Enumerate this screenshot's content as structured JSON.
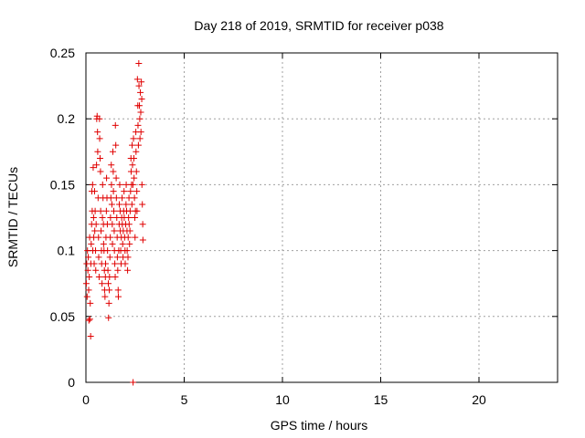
{
  "chart_data": {
    "type": "scatter",
    "title": "Day 218 of 2019, SRMTID for receiver p038",
    "xlabel": "GPS time / hours",
    "ylabel": "SRMTID / TECUs",
    "xlim": [
      0,
      24
    ],
    "ylim": [
      0,
      0.25
    ],
    "xticks": [
      0,
      5,
      10,
      15,
      20
    ],
    "yticks": [
      0,
      0.05,
      0.1,
      0.15,
      0.2,
      0.25
    ],
    "grid": true,
    "marker": "plus",
    "color": "#e00000",
    "points": [
      [
        0.02,
        0.075
      ],
      [
        0.04,
        0.09
      ],
      [
        0.06,
        0.065
      ],
      [
        0.08,
        0.1
      ],
      [
        0.1,
        0.085
      ],
      [
        0.12,
        0.095
      ],
      [
        0.14,
        0.07
      ],
      [
        0.15,
        0.047
      ],
      [
        0.17,
        0.08
      ],
      [
        0.19,
        0.11
      ],
      [
        0.2,
        0.048
      ],
      [
        0.22,
        0.06
      ],
      [
        0.24,
        0.035
      ],
      [
        0.25,
        0.09
      ],
      [
        0.27,
        0.105
      ],
      [
        0.29,
        0.12
      ],
      [
        0.3,
        0.145
      ],
      [
        0.32,
        0.13
      ],
      [
        0.34,
        0.15
      ],
      [
        0.35,
        0.1
      ],
      [
        0.37,
        0.163
      ],
      [
        0.39,
        0.125
      ],
      [
        0.4,
        0.11
      ],
      [
        0.42,
        0.09
      ],
      [
        0.44,
        0.145
      ],
      [
        0.45,
        0.115
      ],
      [
        0.47,
        0.13
      ],
      [
        0.49,
        0.1
      ],
      [
        0.5,
        0.085
      ],
      [
        0.52,
        0.12
      ],
      [
        0.54,
        0.165
      ],
      [
        0.55,
        0.2
      ],
      [
        0.57,
        0.202
      ],
      [
        0.59,
        0.19
      ],
      [
        0.6,
        0.175
      ],
      [
        0.62,
        0.14
      ],
      [
        0.64,
        0.11
      ],
      [
        0.65,
        0.095
      ],
      [
        0.67,
        0.08
      ],
      [
        0.69,
        0.2
      ],
      [
        0.7,
        0.185
      ],
      [
        0.72,
        0.17
      ],
      [
        0.74,
        0.16
      ],
      [
        0.75,
        0.13
      ],
      [
        0.77,
        0.115
      ],
      [
        0.79,
        0.1
      ],
      [
        0.8,
        0.09
      ],
      [
        0.82,
        0.075
      ],
      [
        0.84,
        0.125
      ],
      [
        0.85,
        0.15
      ],
      [
        0.87,
        0.14
      ],
      [
        0.89,
        0.12
      ],
      [
        0.9,
        0.105
      ],
      [
        0.92,
        0.1
      ],
      [
        0.94,
        0.085
      ],
      [
        0.95,
        0.07
      ],
      [
        0.97,
        0.065
      ],
      [
        0.99,
        0.08
      ],
      [
        1.0,
        0.09
      ],
      [
        1.02,
        0.11
      ],
      [
        1.04,
        0.13
      ],
      [
        1.05,
        0.155
      ],
      [
        1.07,
        0.14
      ],
      [
        1.09,
        0.12
      ],
      [
        1.1,
        0.1
      ],
      [
        1.12,
        0.085
      ],
      [
        1.14,
        0.075
      ],
      [
        1.15,
        0.049
      ],
      [
        1.17,
        0.06
      ],
      [
        1.19,
        0.07
      ],
      [
        1.2,
        0.08
      ],
      [
        1.22,
        0.095
      ],
      [
        1.24,
        0.11
      ],
      [
        1.25,
        0.125
      ],
      [
        1.27,
        0.14
      ],
      [
        1.29,
        0.165
      ],
      [
        1.3,
        0.15
      ],
      [
        1.32,
        0.135
      ],
      [
        1.34,
        0.12
      ],
      [
        1.35,
        0.105
      ],
      [
        1.37,
        0.175
      ],
      [
        1.39,
        0.16
      ],
      [
        1.4,
        0.145
      ],
      [
        1.42,
        0.13
      ],
      [
        1.44,
        0.115
      ],
      [
        1.45,
        0.1
      ],
      [
        1.47,
        0.09
      ],
      [
        1.49,
        0.08
      ],
      [
        1.5,
        0.195
      ],
      [
        1.52,
        0.18
      ],
      [
        1.54,
        0.155
      ],
      [
        1.55,
        0.14
      ],
      [
        1.57,
        0.125
      ],
      [
        1.59,
        0.11
      ],
      [
        1.6,
        0.095
      ],
      [
        1.62,
        0.085
      ],
      [
        1.64,
        0.07
      ],
      [
        1.65,
        0.065
      ],
      [
        1.67,
        0.1
      ],
      [
        1.69,
        0.12
      ],
      [
        1.7,
        0.135
      ],
      [
        1.72,
        0.15
      ],
      [
        1.74,
        0.13
      ],
      [
        1.75,
        0.115
      ],
      [
        1.77,
        0.1
      ],
      [
        1.79,
        0.09
      ],
      [
        1.8,
        0.11
      ],
      [
        1.82,
        0.125
      ],
      [
        1.84,
        0.14
      ],
      [
        1.85,
        0.12
      ],
      [
        1.87,
        0.105
      ],
      [
        1.89,
        0.095
      ],
      [
        1.9,
        0.115
      ],
      [
        1.92,
        0.13
      ],
      [
        1.94,
        0.145
      ],
      [
        1.95,
        0.125
      ],
      [
        1.97,
        0.11
      ],
      [
        1.99,
        0.1
      ],
      [
        2.0,
        0.09
      ],
      [
        2.02,
        0.12
      ],
      [
        2.04,
        0.135
      ],
      [
        2.05,
        0.15
      ],
      [
        2.07,
        0.13
      ],
      [
        2.09,
        0.115
      ],
      [
        2.1,
        0.1
      ],
      [
        2.12,
        0.085
      ],
      [
        2.14,
        0.095
      ],
      [
        2.15,
        0.11
      ],
      [
        2.17,
        0.125
      ],
      [
        2.19,
        0.14
      ],
      [
        2.2,
        0.12
      ],
      [
        2.22,
        0.105
      ],
      [
        2.24,
        0.115
      ],
      [
        2.25,
        0.13
      ],
      [
        2.27,
        0.145
      ],
      [
        2.29,
        0.17
      ],
      [
        2.3,
        0.16
      ],
      [
        2.32,
        0.15
      ],
      [
        2.34,
        0.135
      ],
      [
        2.35,
        0.18
      ],
      [
        2.37,
        0.165
      ],
      [
        2.39,
        0.15
      ],
      [
        2.4,
        0.0
      ],
      [
        2.42,
        0.185
      ],
      [
        2.44,
        0.17
      ],
      [
        2.45,
        0.155
      ],
      [
        2.47,
        0.14
      ],
      [
        2.49,
        0.125
      ],
      [
        2.5,
        0.11
      ],
      [
        2.52,
        0.13
      ],
      [
        2.54,
        0.19
      ],
      [
        2.55,
        0.175
      ],
      [
        2.57,
        0.16
      ],
      [
        2.59,
        0.145
      ],
      [
        2.6,
        0.13
      ],
      [
        2.62,
        0.23
      ],
      [
        2.64,
        0.21
      ],
      [
        2.65,
        0.195
      ],
      [
        2.67,
        0.18
      ],
      [
        2.69,
        0.242
      ],
      [
        2.7,
        0.225
      ],
      [
        2.72,
        0.21
      ],
      [
        2.74,
        0.2
      ],
      [
        2.75,
        0.185
      ],
      [
        2.77,
        0.22
      ],
      [
        2.79,
        0.205
      ],
      [
        2.8,
        0.19
      ],
      [
        2.82,
        0.228
      ],
      [
        2.84,
        0.215
      ],
      [
        2.85,
        0.15
      ],
      [
        2.87,
        0.135
      ],
      [
        2.89,
        0.12
      ],
      [
        2.9,
        0.108
      ]
    ]
  }
}
